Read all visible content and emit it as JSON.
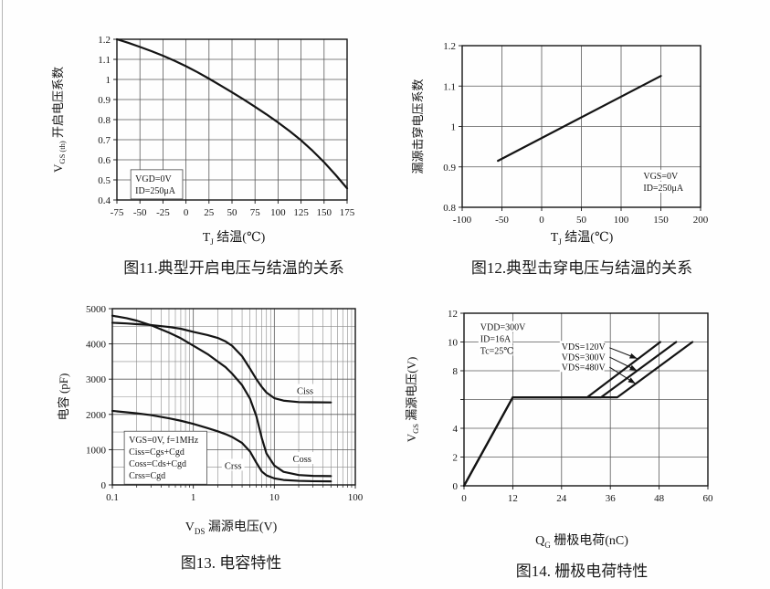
{
  "page": {
    "background": "#fefefe",
    "ink": "#141414",
    "grid_major": "#5a5a5a",
    "grid_minor": "#8a8a8a"
  },
  "chart_data": [
    {
      "id": "fig11",
      "type": "line",
      "caption": "图11.典型开启电压与结温的关系",
      "xlabel_segments": [
        {
          "t": "T"
        },
        {
          "t": "J",
          "sub": true
        },
        {
          "t": " 结温(℃)"
        }
      ],
      "ylabel_segments": [
        {
          "t": "V"
        },
        {
          "t": "GS (th)",
          "sub": true
        },
        {
          "t": " 开启电压系数"
        }
      ],
      "xscale": "linear",
      "xlim": [
        -75,
        175
      ],
      "ylim": [
        0.4,
        1.2
      ],
      "x_tick_values": [
        -75,
        -50,
        -25,
        0,
        25,
        50,
        75,
        100,
        125,
        150,
        175
      ],
      "x_tick_labels": [
        "-75",
        "-50",
        "-25",
        "0",
        "25",
        "50",
        "75",
        "100",
        "125",
        "150",
        "175"
      ],
      "y_tick_values": [
        0.4,
        0.5,
        0.6,
        0.7,
        0.8,
        0.9,
        1,
        1.1,
        1.2
      ],
      "y_tick_labels": [
        "0.4",
        "0.5",
        "0.6",
        "0.7",
        "0.8",
        "0.9",
        "1",
        "1.1",
        "1.2"
      ],
      "annotation": {
        "x": -55,
        "y": 0.537,
        "box": true,
        "lines": [
          "VGD=0V",
          "ID=250μA"
        ]
      },
      "series": [
        {
          "name": "normalized-threshold-voltage",
          "x": [
            -75,
            -62.5,
            -50,
            -37.5,
            -25,
            -12.5,
            0,
            12.5,
            25,
            37.5,
            50,
            62.5,
            75,
            87.5,
            100,
            112.5,
            125,
            137.5,
            150,
            162.5,
            175
          ],
          "y": [
            1.2,
            1.182,
            1.162,
            1.141,
            1.118,
            1.093,
            1.066,
            1.036,
            1.004,
            0.97,
            0.936,
            0.901,
            0.864,
            0.826,
            0.786,
            0.743,
            0.697,
            0.645,
            0.588,
            0.525,
            0.458
          ]
        }
      ]
    },
    {
      "id": "fig12",
      "type": "line",
      "caption": "图12.典型击穿电压与结温的关系",
      "xlabel_segments": [
        {
          "t": "T"
        },
        {
          "t": "J",
          "sub": true
        },
        {
          "t": " 结温(℃)"
        }
      ],
      "ylabel_segments": [
        {
          "t": "漏源击穿电压系数"
        }
      ],
      "xscale": "linear",
      "xlim": [
        -100,
        200
      ],
      "ylim": [
        0.8,
        1.2
      ],
      "x_tick_values": [
        -100,
        -50,
        0,
        50,
        100,
        150,
        200
      ],
      "x_tick_labels": [
        "-100",
        "-50",
        "0",
        "50",
        "100",
        "150",
        "200"
      ],
      "y_tick_values": [
        0.8,
        0.9,
        1,
        1.1,
        1.2
      ],
      "y_tick_labels": [
        "0.8",
        "0.9",
        "1",
        "1.1",
        "1.2"
      ],
      "annotation": {
        "x": 128,
        "y": 0.893,
        "box": false,
        "lines": [
          "VGS=0V",
          "ID=250μA"
        ]
      },
      "series": [
        {
          "name": "normalized-breakdown-voltage",
          "x": [
            -55,
            150
          ],
          "y": [
            0.915,
            1.125
          ]
        }
      ]
    },
    {
      "id": "fig13",
      "type": "line",
      "caption": "图13. 电容特性",
      "xlabel_segments": [
        {
          "t": "V"
        },
        {
          "t": "DS",
          "sub": true
        },
        {
          "t": " 漏源电压(V)"
        }
      ],
      "ylabel_segments": [
        {
          "t": "电容 (pF)"
        }
      ],
      "xscale": "log",
      "xlim": [
        0.1,
        100
      ],
      "ylim": [
        0,
        5000
      ],
      "x_tick_values": [
        0.1,
        1,
        10,
        100
      ],
      "x_tick_labels": [
        "0.1",
        "1",
        "10",
        "100"
      ],
      "y_tick_values": [
        0,
        1000,
        2000,
        3000,
        4000,
        5000
      ],
      "y_tick_labels": [
        "0",
        "1000",
        "2000",
        "3000",
        "4000",
        "5000"
      ],
      "y_minor_step": 500,
      "annotation": {
        "x": 0.16,
        "y": 1445,
        "box": true,
        "lines": [
          "VGS=0V, f=1MHz",
          "Ciss=Cgs+Cgd",
          "Coss=Cds+Cgd",
          "Crss=Cgd"
        ]
      },
      "series": [
        {
          "name": "Ciss",
          "x": [
            0.1,
            0.15,
            0.2,
            0.3,
            0.5,
            0.7,
            1,
            1.5,
            2,
            2.5,
            3,
            4,
            5,
            6,
            7,
            8,
            10,
            13,
            20,
            30,
            50
          ],
          "y": [
            4600,
            4580,
            4560,
            4535,
            4480,
            4430,
            4340,
            4250,
            4170,
            4070,
            3950,
            3650,
            3300,
            3000,
            2780,
            2620,
            2460,
            2390,
            2350,
            2345,
            2340
          ]
        },
        {
          "name": "Coss",
          "x": [
            0.1,
            0.15,
            0.2,
            0.3,
            0.5,
            0.7,
            1,
            1.5,
            2,
            2.5,
            3,
            4,
            5,
            6,
            7,
            8,
            10,
            13,
            20,
            30,
            50
          ],
          "y": [
            4800,
            4730,
            4660,
            4530,
            4320,
            4160,
            3950,
            3710,
            3500,
            3340,
            3160,
            2830,
            2450,
            1950,
            1330,
            890,
            550,
            370,
            280,
            255,
            250
          ]
        },
        {
          "name": "Crss",
          "x": [
            0.1,
            0.15,
            0.2,
            0.3,
            0.5,
            0.7,
            1,
            1.5,
            2,
            2.5,
            3,
            4,
            5,
            6,
            7,
            8,
            10,
            13,
            20,
            30,
            50
          ],
          "y": [
            2100,
            2060,
            2030,
            1980,
            1890,
            1820,
            1730,
            1610,
            1520,
            1440,
            1360,
            1190,
            950,
            630,
            380,
            270,
            185,
            140,
            115,
            105,
            100
          ]
        }
      ],
      "curve_labels": [
        {
          "text": "Ciss",
          "x": 24,
          "y": 2680
        },
        {
          "text": "Coss",
          "x": 22,
          "y": 750
        },
        {
          "text": "Crss",
          "x": 3.1,
          "y": 560
        }
      ]
    },
    {
      "id": "fig14",
      "type": "line",
      "caption": "图14. 栅极电荷特性",
      "xlabel_segments": [
        {
          "t": "Q"
        },
        {
          "t": "G",
          "sub": true
        },
        {
          "t": " 栅极电荷(nC)"
        }
      ],
      "ylabel_segments": [
        {
          "t": "V"
        },
        {
          "t": "GS",
          "sub": true
        },
        {
          "t": " 漏源电压(V)"
        }
      ],
      "xscale": "linear",
      "xlim": [
        0,
        60
      ],
      "ylim": [
        0,
        12
      ],
      "x_tick_values": [
        0,
        12,
        24,
        36,
        48,
        60
      ],
      "x_tick_labels": [
        "0",
        "12",
        "24",
        "36",
        "48",
        "60"
      ],
      "y_tick_values": [
        0,
        2,
        4,
        8,
        10,
        12
      ],
      "y_tick_labels": [
        "0",
        "2",
        "4",
        "8",
        "10",
        "12"
      ],
      "y_grid_values": [
        0,
        2,
        4,
        6,
        8,
        10,
        12
      ],
      "annotation": {
        "x": 4,
        "y": 11.45,
        "box": false,
        "lines": [
          "VDD=300V",
          "ID=16A",
          "Tc=25℃"
        ]
      },
      "series": [
        {
          "name": "VDS=120V",
          "x": [
            0,
            12,
            30.3,
            48.3
          ],
          "y": [
            0,
            6.15,
            6.15,
            10
          ]
        },
        {
          "name": "VDS=300V",
          "x": [
            0,
            12,
            33.7,
            52.2
          ],
          "y": [
            0,
            6.15,
            6.15,
            10
          ]
        },
        {
          "name": "VDS=480V",
          "x": [
            0,
            12,
            37.7,
            56.2
          ],
          "y": [
            0,
            6.15,
            6.15,
            10
          ]
        }
      ],
      "pointers": [
        {
          "text": "VDS=120V",
          "tx": 24,
          "ty": 9.7,
          "x1": 35.8,
          "y1": 9.6,
          "x2": 42.6,
          "y2": 8.85
        },
        {
          "text": "VDS=300V",
          "tx": 24,
          "ty": 9.0,
          "x1": 35.8,
          "y1": 8.95,
          "x2": 42.6,
          "y2": 8.0
        },
        {
          "text": "VDS=480V",
          "tx": 24,
          "ty": 8.3,
          "x1": 35.8,
          "y1": 8.25,
          "x2": 42.2,
          "y2": 7.1
        }
      ]
    }
  ]
}
